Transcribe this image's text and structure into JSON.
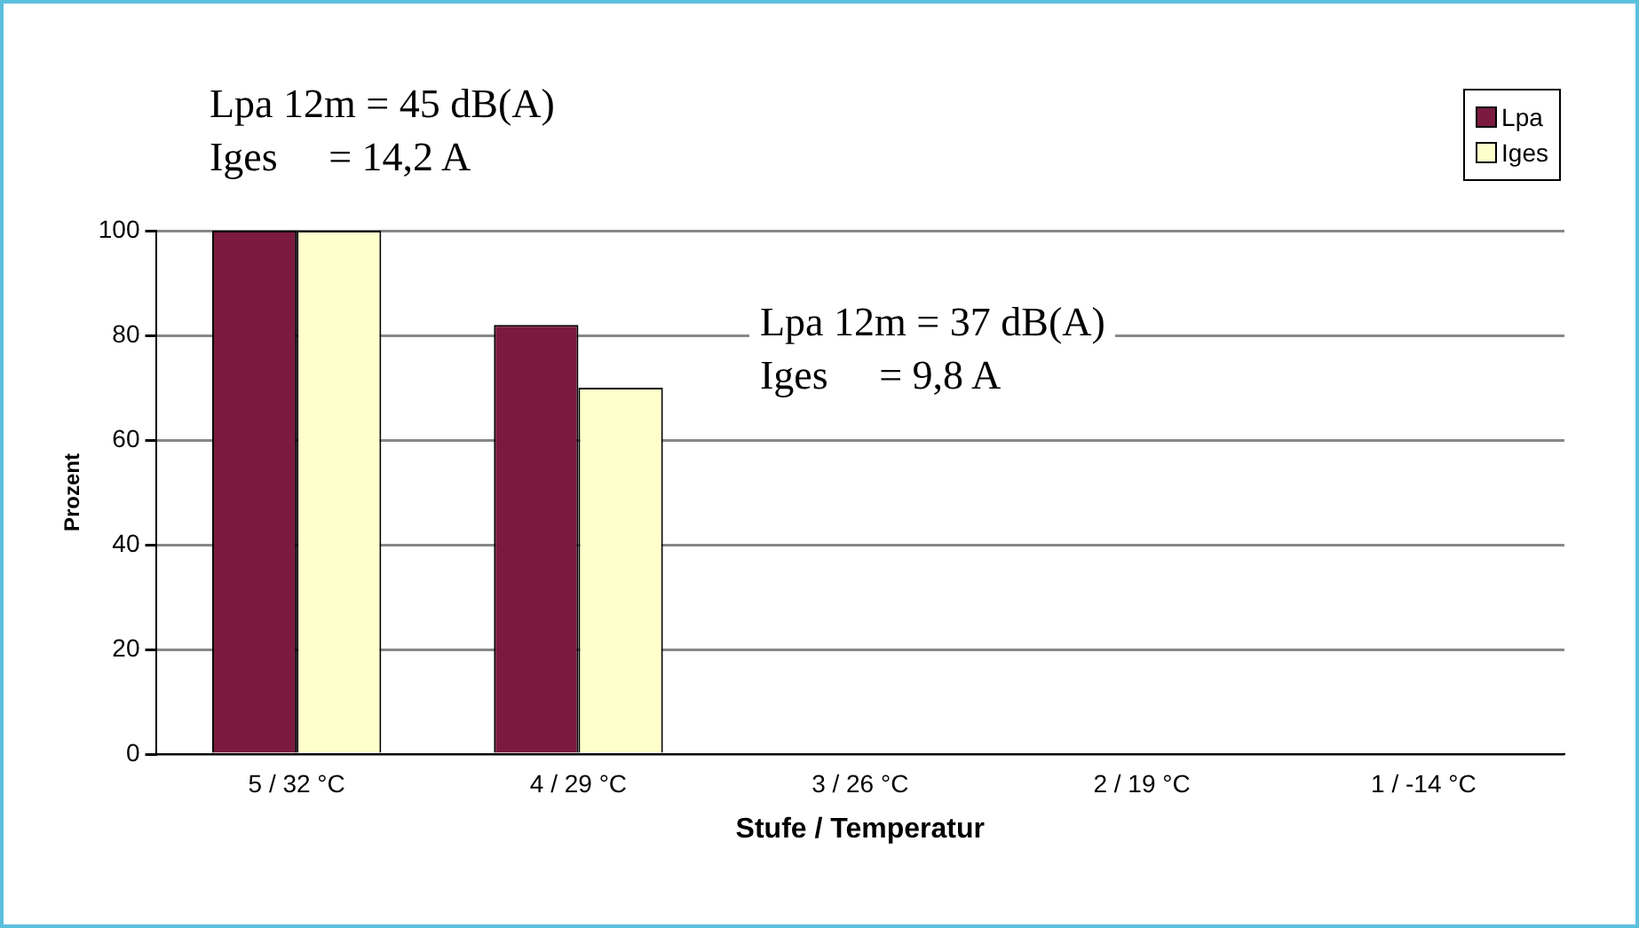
{
  "chart_data": {
    "type": "bar",
    "xlabel": "Stufe / Temperatur",
    "ylabel": "Prozent",
    "categories": [
      "5 / 32 °C",
      "4 / 29 °C",
      "3 / 26 °C",
      "2 / 19 °C",
      "1 / -14 °C"
    ],
    "series": [
      {
        "name": "Lpa",
        "color": "#7b1a3f",
        "values": [
          100,
          82,
          null,
          null,
          null
        ]
      },
      {
        "name": "Iges",
        "color": "#ffffcc",
        "values": [
          100,
          70,
          null,
          null,
          null
        ]
      }
    ],
    "ylim": [
      0,
      100
    ],
    "yticks": [
      0,
      20,
      40,
      60,
      80,
      100
    ],
    "grid": "y",
    "legend": "top right",
    "annotations": [
      "Lpa 12m = 45 dB(A)\nIges     = 14,2 A",
      "Lpa 12m = 37 dB(A)\nIges     = 9,8 A"
    ]
  }
}
